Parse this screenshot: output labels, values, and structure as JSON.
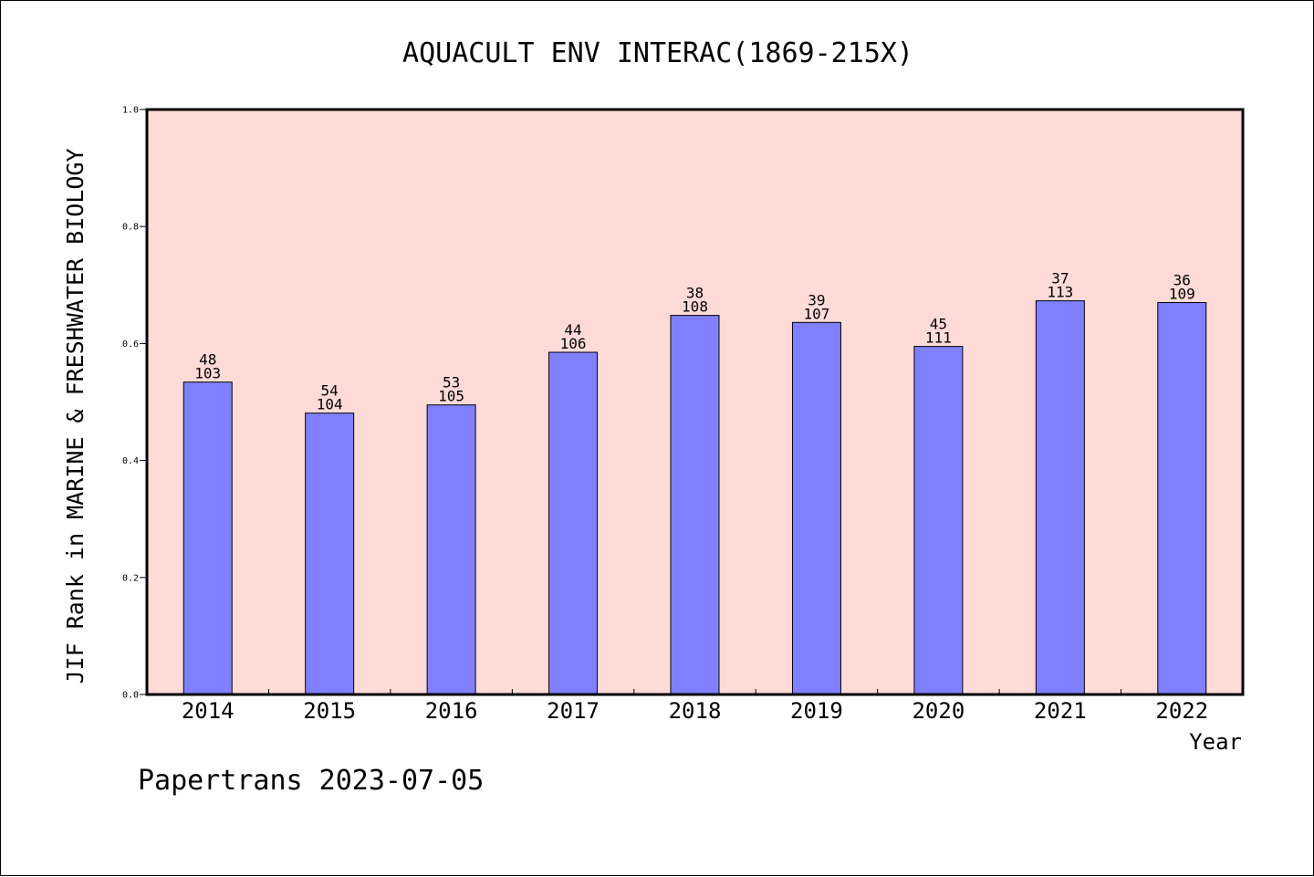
{
  "chart_data": {
    "type": "bar",
    "title": "AQUACULT ENV INTERAC(1869-215X)",
    "xlabel": "Year",
    "ylabel": "JIF Rank in MARINE & FRESHWATER BIOLOGY",
    "ylim": [
      0,
      1.0
    ],
    "yticks": [
      "0.0",
      "0.2",
      "0.4",
      "0.6",
      "0.8",
      "1.0"
    ],
    "grid": false,
    "plot_background": "#ffdbd8",
    "bar_color": "#8080ff",
    "categories": [
      "2014",
      "2015",
      "2016",
      "2017",
      "2018",
      "2019",
      "2020",
      "2021",
      "2022"
    ],
    "values": [
      0.534,
      0.481,
      0.495,
      0.585,
      0.648,
      0.636,
      0.595,
      0.673,
      0.67
    ],
    "rank": [
      "48",
      "54",
      "53",
      "44",
      "38",
      "39",
      "45",
      "37",
      "36"
    ],
    "total": [
      "103",
      "104",
      "105",
      "106",
      "108",
      "107",
      "111",
      "113",
      "109"
    ]
  },
  "footer": "Papertrans 2023-07-05"
}
